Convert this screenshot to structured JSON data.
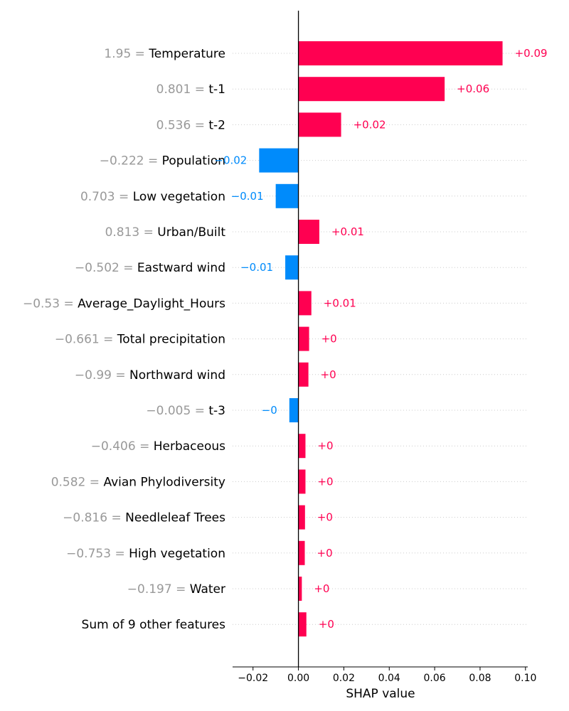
{
  "chart_data": {
    "type": "bar",
    "orientation": "horizontal",
    "style": "waterfall-bar",
    "xlabel": "SHAP value",
    "xlim": [
      -0.029,
      0.101
    ],
    "xticks": [
      -0.02,
      0.0,
      0.02,
      0.04,
      0.06,
      0.08,
      0.1
    ],
    "xtick_labels": [
      "−0.02",
      "0.00",
      "0.02",
      "0.04",
      "0.06",
      "0.08",
      "0.10"
    ],
    "colors": {
      "positive": "#ff0051",
      "negative": "#008bfb",
      "feature_value": "#999999"
    },
    "features": [
      {
        "name": "Temperature",
        "value_text": "1.95 =",
        "shap": 0.0899,
        "label": "+0.09"
      },
      {
        "name": "t-1",
        "value_text": "0.801 =",
        "shap": 0.0644,
        "label": "+0.06"
      },
      {
        "name": "t-2",
        "value_text": "0.536 =",
        "shap": 0.0188,
        "label": "+0.02"
      },
      {
        "name": "Population",
        "value_text": "−0.222 =",
        "shap": -0.0173,
        "label": "−0.02"
      },
      {
        "name": "Low vegetation",
        "value_text": "0.703 =",
        "shap": -0.01,
        "label": "−0.01"
      },
      {
        "name": "Urban/Built",
        "value_text": "0.813 =",
        "shap": 0.0092,
        "label": "+0.01"
      },
      {
        "name": "Eastward wind",
        "value_text": "−0.502 =",
        "shap": -0.0058,
        "label": "−0.01"
      },
      {
        "name": "Average_Daylight_Hours",
        "value_text": "−0.53 =",
        "shap": 0.0057,
        "label": "+0.01"
      },
      {
        "name": "Total precipitation",
        "value_text": "−0.661 =",
        "shap": 0.0047,
        "label": "+0"
      },
      {
        "name": "Northward wind",
        "value_text": "−0.99 =",
        "shap": 0.0044,
        "label": "+0"
      },
      {
        "name": "t-3",
        "value_text": "−0.005 =",
        "shap": -0.004,
        "label": "−0"
      },
      {
        "name": "Herbaceous",
        "value_text": "−0.406 =",
        "shap": 0.0031,
        "label": "+0"
      },
      {
        "name": "Avian Phylodiversity",
        "value_text": "0.582 =",
        "shap": 0.0031,
        "label": "+0"
      },
      {
        "name": "Needleleaf Trees",
        "value_text": "−0.816 =",
        "shap": 0.0029,
        "label": "+0"
      },
      {
        "name": "High vegetation",
        "value_text": "−0.753 =",
        "shap": 0.0028,
        "label": "+0"
      },
      {
        "name": "Water",
        "value_text": "−0.197 =",
        "shap": 0.0015,
        "label": "+0"
      },
      {
        "name": "Sum of 9 other features",
        "value_text": "",
        "shap": 0.0035,
        "label": "+0"
      }
    ]
  }
}
